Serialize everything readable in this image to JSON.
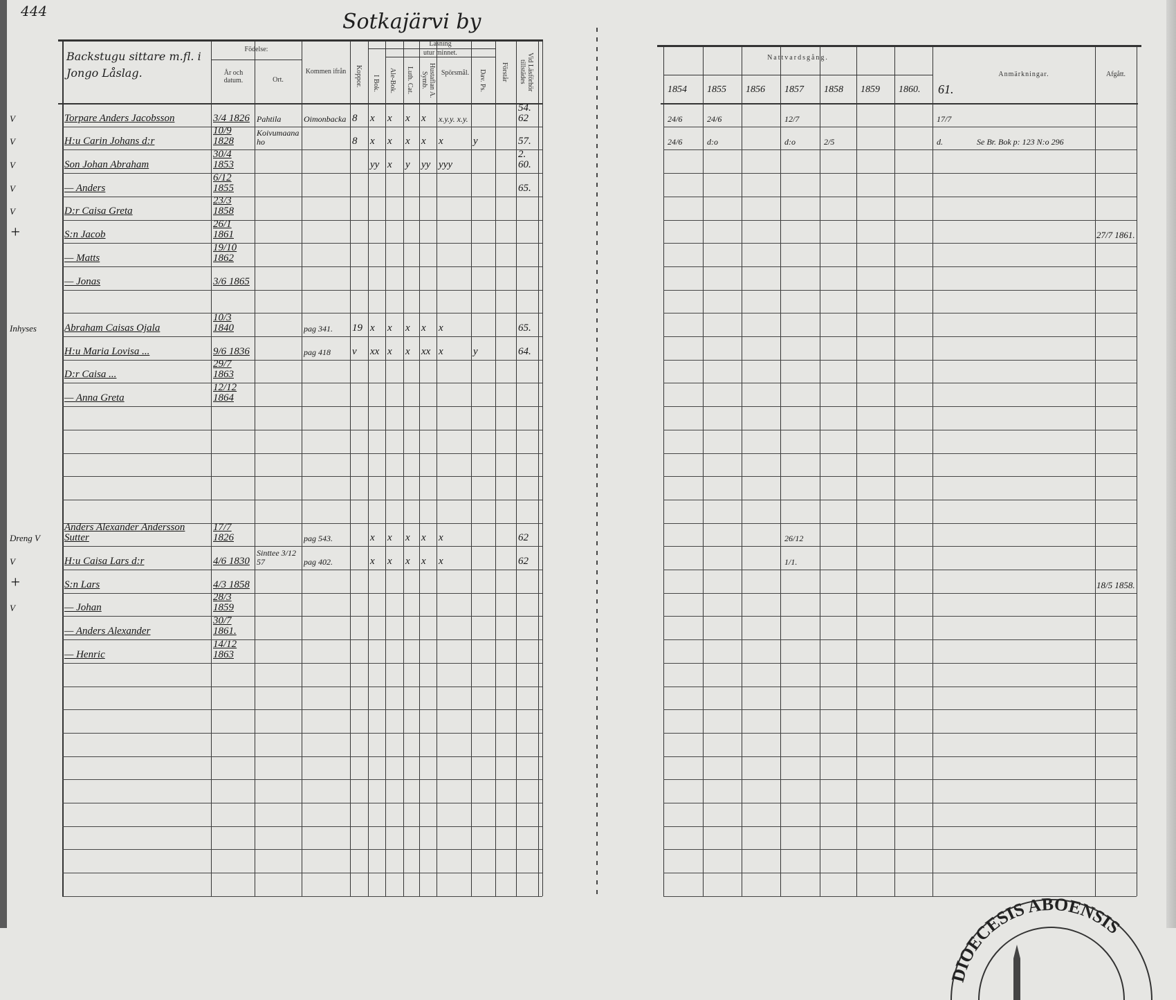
{
  "page_number": "444",
  "village": "Sotkajärvi by",
  "left_page": {
    "household_heading": "Backstugu sittare m.fl. i Jongo Låslag.",
    "headers": {
      "fodelse": "Födelse:",
      "ar_datum": "År och datum.",
      "ort": "Ort.",
      "kommen_ifran": "Kommen ifrån",
      "koppor": "Koppor.",
      "lasning": "Läsning",
      "utur_minnet": "utur minnet.",
      "i_bok": "I Bok.",
      "ale_bok": "Ale-Bok.",
      "luth_cat": "Luth. Cat.",
      "hustaflan": "Hustaflan A. Symb.",
      "sporsmal": "Spörsmål.",
      "dav_ps": "Dav. Ps.",
      "forstar": "Förstår",
      "vid_lasforhor": "Vid Läsförhör tillstädes"
    },
    "rows": [
      {
        "margin": "V",
        "name": "Torpare Anders Jacobsson",
        "date": "3/4 1826",
        "place": "Pahtila",
        "from": "Oimonbacka",
        "koppor": "8",
        "i_bok": "x",
        "ale_bok": "x",
        "luth_cat": "x",
        "hustaflan": "x",
        "sporsmal": "x.y.y. x.y.",
        "dav_ps": "",
        "vid": "54. 62"
      },
      {
        "margin": "V",
        "name": "H:u Carin Johans d:r",
        "date": "10/9 1828",
        "place": "Koivumaanaho",
        "from": "",
        "koppor": "8",
        "i_bok": "x",
        "ale_bok": "x",
        "luth_cat": "x",
        "hustaflan": "x",
        "sporsmal": "x",
        "dav_ps": "y",
        "vid": "57."
      },
      {
        "margin": "V",
        "name": "Son Johan Abraham",
        "date": "30/4 1853",
        "i_bok": "yy",
        "ale_bok": "x",
        "luth_cat": "y",
        "hustaflan": "yy",
        "sporsmal": "yyy",
        "vid": "2. 60."
      },
      {
        "margin": "V",
        "name": "— Anders",
        "date": "6/12 1855",
        "vid": "65."
      },
      {
        "margin": "V",
        "name": "D:r Caisa Greta",
        "date": "23/3 1858"
      },
      {
        "margin": "+",
        "name": "S:n Jacob",
        "date": "26/1 1861"
      },
      {
        "margin": "",
        "name": "— Matts",
        "date": "19/10 1862"
      },
      {
        "margin": "",
        "name": "— Jonas",
        "date": "3/6 1865"
      },
      {},
      {
        "margin": "Inhyses",
        "name": "Abraham Caisas Ojala",
        "date": "10/3 1840",
        "from": "pag 341.",
        "koppor": "19",
        "i_bok": "x",
        "ale_bok": "x",
        "luth_cat": "x",
        "hustaflan": "x",
        "sporsmal": "x",
        "vid": "65."
      },
      {
        "margin": "",
        "name": "H:u Maria Lovisa ...",
        "date": "9/6 1836",
        "from": "pag 418",
        "koppor": "v",
        "i_bok": "xx",
        "ale_bok": "x",
        "luth_cat": "x",
        "hustaflan": "xx",
        "sporsmal": "x",
        "dav_ps": "y",
        "vid": "64."
      },
      {
        "margin": "",
        "name": "D:r Caisa ...",
        "date": "29/7 1863"
      },
      {
        "margin": "",
        "name": "— Anna Greta",
        "date": "12/12 1864"
      },
      {},
      {},
      {},
      {},
      {},
      {
        "margin": "Dreng V",
        "name": "Anders Alexander Andersson Sutter",
        "date": "17/7 1826",
        "from": "pag 543.",
        "i_bok": "x",
        "ale_bok": "x",
        "luth_cat": "x",
        "hustaflan": "x",
        "sporsmal": "x",
        "vid": "62"
      },
      {
        "margin": "V",
        "name": "H:u Caisa Lars d:r",
        "date": "4/6 1830",
        "place": "Sinttee 3/12 57",
        "from": "pag 402.",
        "i_bok": "x",
        "ale_bok": "x",
        "luth_cat": "x",
        "hustaflan": "x",
        "sporsmal": "x",
        "vid": "62"
      },
      {
        "margin": "+",
        "name": "S:n Lars",
        "date": "4/3 1858"
      },
      {
        "margin": "V",
        "name": "— Johan",
        "date": "28/3 1859"
      },
      {
        "margin": "",
        "name": "— Anders Alexander",
        "date": "30/7 1861."
      },
      {
        "margin": "",
        "name": "— Henric",
        "date": "14/12 1863"
      },
      {},
      {},
      {},
      {},
      {},
      {},
      {},
      {},
      {},
      {}
    ]
  },
  "right_page": {
    "headers": {
      "nattvardsgang": "Nattvardsgång.",
      "years": [
        "1854",
        "1855",
        "1856",
        "1857",
        "1858",
        "1859",
        "1860."
      ],
      "year_61": "61.",
      "anmarkningar": "Anmärkningar.",
      "afgatt": "Afgått."
    },
    "rows": [
      {
        "n": [
          "24/6",
          "24/6",
          "",
          "12/7",
          "",
          "",
          ""
        ],
        "n61": "17/7",
        "remark": "",
        "afgatt": ""
      },
      {
        "n": [
          "24/6",
          "d:o",
          "",
          "d:o",
          "2/5",
          "",
          ""
        ],
        "n61": "d.",
        "remark": "Se Br. Bok p: 123 N:o 296",
        "afgatt": ""
      },
      {},
      {},
      {},
      {
        "afgatt": "27/7 1861."
      },
      {},
      {},
      {},
      {},
      {},
      {},
      {},
      {},
      {},
      {},
      {},
      {},
      {
        "n": [
          "",
          "",
          "",
          "26/12",
          "",
          "",
          ""
        ]
      },
      {
        "n": [
          "",
          "",
          "",
          "1/1.",
          "",
          "",
          ""
        ]
      },
      {
        "afgatt": "18/5 1858."
      },
      {},
      {},
      {},
      {},
      {},
      {},
      {},
      {},
      {},
      {},
      {},
      {},
      {}
    ]
  },
  "stamp_text": "DIOECESIS ABOENSIS"
}
